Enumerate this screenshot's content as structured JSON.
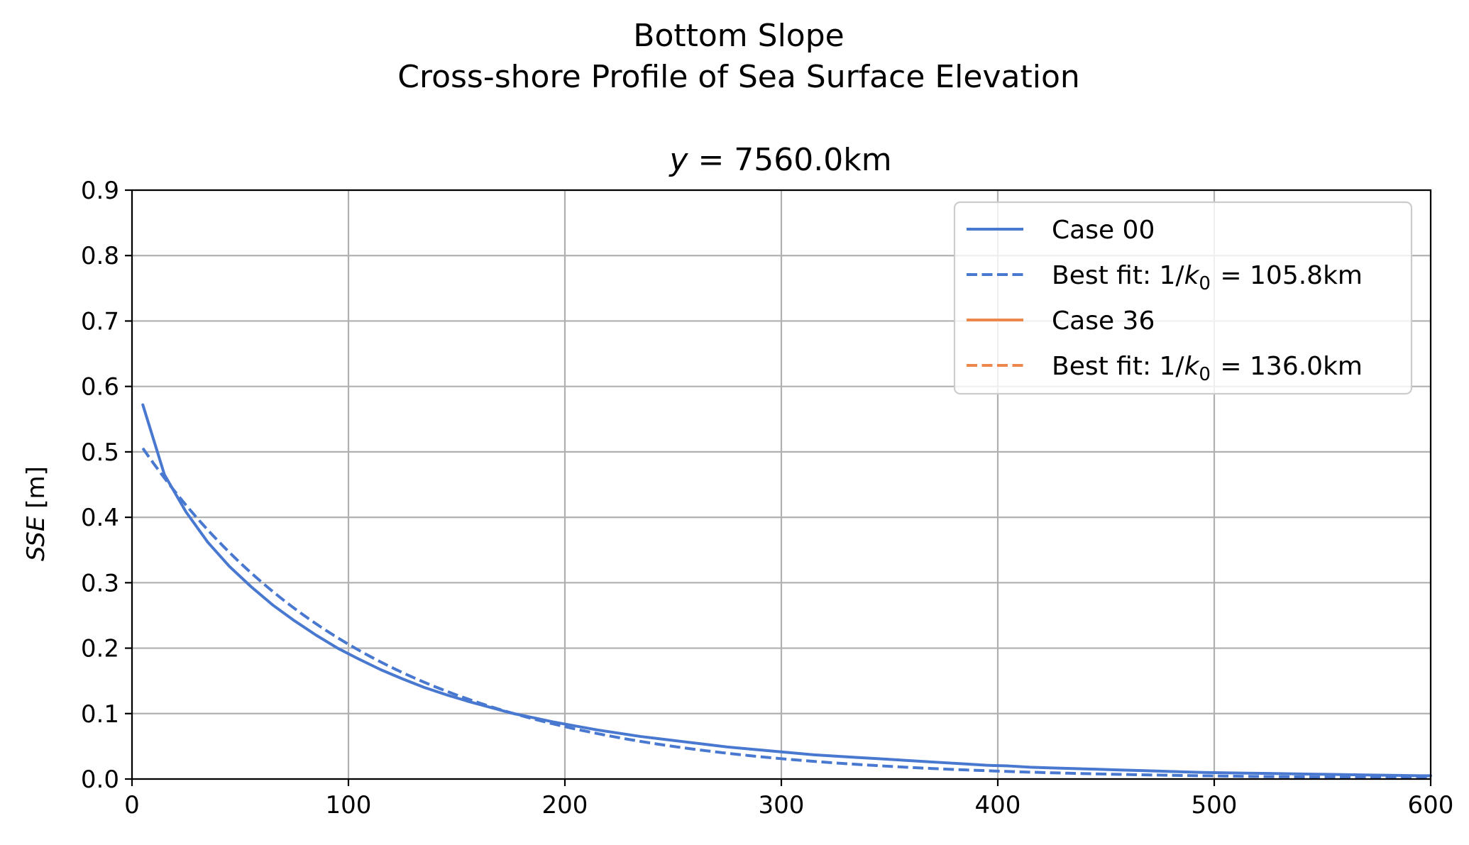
{
  "figure": {
    "suptitle_line1": "Bottom Slope",
    "suptitle_line2": "Cross-shore Profile of Sea Surface Elevation"
  },
  "chart_data": {
    "type": "line",
    "title": "y = 7560.0km",
    "title_math_var": "y",
    "title_rest": " = 7560.0km",
    "xlabel": "",
    "ylabel": "SSE [m]",
    "ylabel_math": "SSE",
    "ylabel_unit": " [m]",
    "xlim": [
      0,
      600
    ],
    "ylim": [
      0,
      0.9
    ],
    "xticks": [
      0,
      100,
      200,
      300,
      400,
      500,
      600
    ],
    "xtick_labels": [
      "0",
      "100",
      "200",
      "300",
      "400",
      "500",
      "600"
    ],
    "yticks": [
      0.0,
      0.1,
      0.2,
      0.3,
      0.4,
      0.5,
      0.6,
      0.7,
      0.8,
      0.9
    ],
    "ytick_labels": [
      "0.0",
      "0.1",
      "0.2",
      "0.3",
      "0.4",
      "0.5",
      "0.6",
      "0.7",
      "0.8",
      "0.9"
    ],
    "grid": true,
    "legend_position": "top-right",
    "series": [
      {
        "name": "Case 00",
        "color": "#4878cf",
        "style": "solid",
        "x": [
          5,
          15,
          25,
          35,
          45,
          55,
          65,
          75,
          85,
          95,
          105,
          115,
          125,
          135,
          145,
          155,
          165,
          175,
          185,
          195,
          205,
          215,
          225,
          235,
          245,
          255,
          265,
          275,
          285,
          295,
          305,
          315,
          325,
          335,
          345,
          355,
          365,
          375,
          385,
          395,
          405,
          415,
          425,
          435,
          445,
          455,
          465,
          475,
          485,
          495,
          505,
          515,
          525,
          535,
          545,
          555,
          565,
          575,
          585,
          595,
          600
        ],
        "y": [
          0.572,
          0.465,
          0.408,
          0.362,
          0.325,
          0.294,
          0.266,
          0.242,
          0.22,
          0.2,
          0.183,
          0.167,
          0.153,
          0.14,
          0.129,
          0.119,
          0.11,
          0.101,
          0.094,
          0.087,
          0.081,
          0.075,
          0.07,
          0.065,
          0.061,
          0.057,
          0.053,
          0.049,
          0.046,
          0.043,
          0.04,
          0.037,
          0.035,
          0.033,
          0.031,
          0.029,
          0.027,
          0.025,
          0.023,
          0.021,
          0.02,
          0.018,
          0.017,
          0.016,
          0.015,
          0.014,
          0.013,
          0.012,
          0.011,
          0.01,
          0.0095,
          0.009,
          0.0085,
          0.008,
          0.0075,
          0.007,
          0.0065,
          0.006,
          0.0055,
          0.005,
          0.005
        ]
      },
      {
        "name": "Best fit: 1/k0 = 105.8km",
        "legend_prefix": "Best fit: 1/",
        "legend_math": "k",
        "legend_sub": "0",
        "legend_suffix": " = 105.8km",
        "color": "#4878cf",
        "style": "dashed",
        "amplitude": 0.53,
        "decay_scale_km": 105.8
      },
      {
        "name": "Case 36",
        "color": "#ee854a",
        "style": "solid",
        "x": [],
        "y": []
      },
      {
        "name": "Best fit: 1/k0 = 136.0km",
        "legend_prefix": "Best fit: 1/",
        "legend_math": "k",
        "legend_sub": "0",
        "legend_suffix": " = 136.0km",
        "color": "#ee854a",
        "style": "dashed",
        "x": [],
        "y": []
      }
    ]
  }
}
